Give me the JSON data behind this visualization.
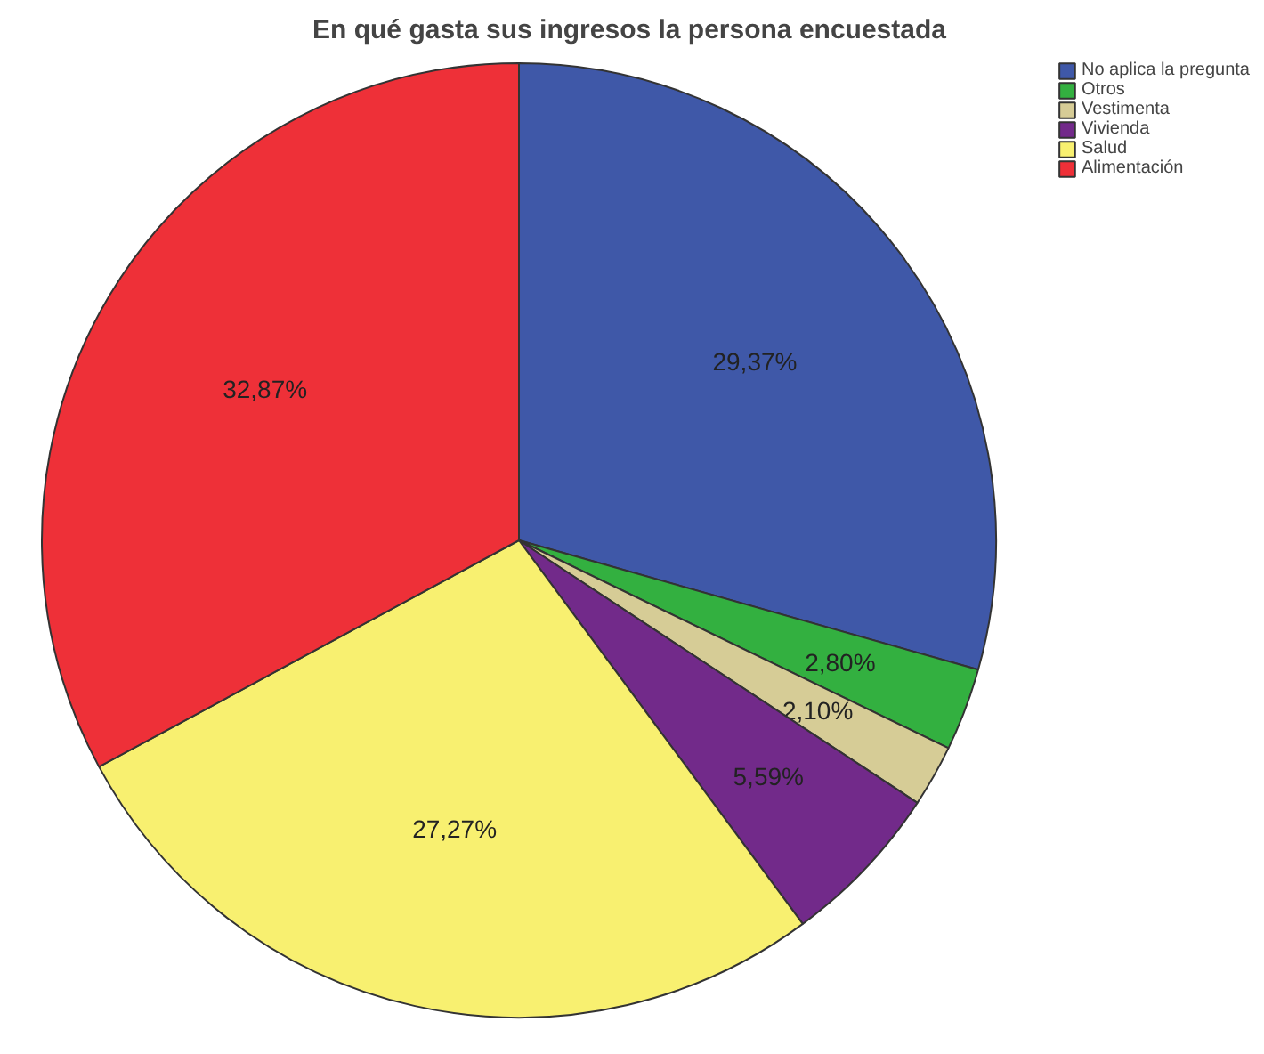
{
  "chart_data": {
    "type": "pie",
    "title": "En qué gasta sus ingresos la persona encuestada",
    "categories": [
      "No aplica la pregunta",
      "Otros",
      "Vestimenta",
      "Vivienda",
      "Salud",
      "Alimentación"
    ],
    "values": [
      29.37,
      2.8,
      2.1,
      5.59,
      27.27,
      32.87
    ],
    "colors": [
      "#3f58a8",
      "#33b040",
      "#d6cc96",
      "#722a8a",
      "#f8f070",
      "#ee3038"
    ],
    "value_labels": [
      "29,37%",
      "2,80%",
      "2,10%",
      "5,59%",
      "27,27%",
      "32,87%"
    ],
    "legend": "top right"
  }
}
